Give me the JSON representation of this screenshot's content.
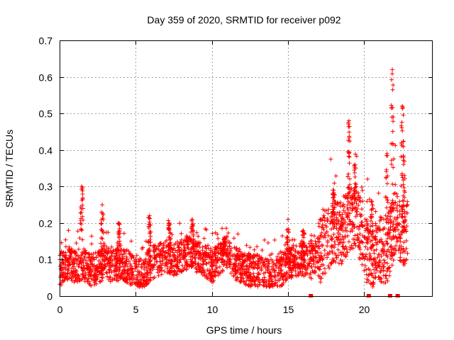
{
  "chart_data": {
    "type": "scatter",
    "title": "Day 359 of 2020, SRMTID for receiver p092",
    "xlabel": "GPS time / hours",
    "ylabel": "SRMTID / TECUs",
    "xlim": [
      0,
      24.5
    ],
    "ylim": [
      0,
      0.7
    ],
    "xticks": [
      0,
      5,
      10,
      15,
      20
    ],
    "xtick_labels": [
      "0",
      "5",
      "10",
      "15",
      "20"
    ],
    "yticks": [
      0,
      0.1,
      0.2,
      0.3,
      0.4,
      0.5,
      0.6,
      0.7
    ],
    "ytick_labels": [
      "0",
      "0.1",
      "0.2",
      "0.3",
      "0.4",
      "0.5",
      "0.6",
      "0.7"
    ],
    "grid": true,
    "marker": "+",
    "color": "#ff0000",
    "baseline_points": [
      [
        0.0,
        0.07
      ],
      [
        0.5,
        0.09
      ],
      [
        1.0,
        0.08
      ],
      [
        1.5,
        0.09
      ],
      [
        2.0,
        0.07
      ],
      [
        2.5,
        0.08
      ],
      [
        3.0,
        0.09
      ],
      [
        3.5,
        0.08
      ],
      [
        4.0,
        0.09
      ],
      [
        4.5,
        0.08
      ],
      [
        5.0,
        0.06
      ],
      [
        5.5,
        0.06
      ],
      [
        6.0,
        0.09
      ],
      [
        6.5,
        0.1
      ],
      [
        7.0,
        0.11
      ],
      [
        7.5,
        0.1
      ],
      [
        8.0,
        0.11
      ],
      [
        8.5,
        0.12
      ],
      [
        9.0,
        0.11
      ],
      [
        9.5,
        0.1
      ],
      [
        10.0,
        0.08
      ],
      [
        10.5,
        0.1
      ],
      [
        11.0,
        0.12
      ],
      [
        11.5,
        0.09
      ],
      [
        12.0,
        0.08
      ],
      [
        12.5,
        0.07
      ],
      [
        13.0,
        0.07
      ],
      [
        13.5,
        0.06
      ],
      [
        14.0,
        0.06
      ],
      [
        14.5,
        0.07
      ],
      [
        15.0,
        0.09
      ],
      [
        15.5,
        0.1
      ],
      [
        16.0,
        0.1
      ],
      [
        16.5,
        0.09
      ],
      [
        17.0,
        0.12
      ],
      [
        17.5,
        0.15
      ],
      [
        18.0,
        0.18
      ],
      [
        18.5,
        0.17
      ],
      [
        19.0,
        0.2
      ],
      [
        19.5,
        0.22
      ],
      [
        20.0,
        0.14
      ],
      [
        20.5,
        0.1
      ],
      [
        21.0,
        0.13
      ],
      [
        21.5,
        0.12
      ],
      [
        22.0,
        0.2
      ],
      [
        22.5,
        0.17
      ],
      [
        22.8,
        0.18
      ]
    ],
    "spikes": [
      {
        "x": 1.45,
        "peak": 0.3
      },
      {
        "x": 2.8,
        "peak": 0.25
      },
      {
        "x": 3.9,
        "peak": 0.2
      },
      {
        "x": 5.9,
        "peak": 0.22
      },
      {
        "x": 7.2,
        "peak": 0.2
      },
      {
        "x": 8.7,
        "peak": 0.21
      },
      {
        "x": 10.8,
        "peak": 0.16
      },
      {
        "x": 15.0,
        "peak": 0.21
      },
      {
        "x": 16.0,
        "peak": 0.18
      },
      {
        "x": 18.0,
        "peak": 0.29
      },
      {
        "x": 19.0,
        "peak": 0.48
      },
      {
        "x": 19.4,
        "peak": 0.36
      },
      {
        "x": 20.5,
        "peak": 0.26
      },
      {
        "x": 21.5,
        "peak": 0.39
      },
      {
        "x": 21.85,
        "peak": 0.62
      },
      {
        "x": 22.5,
        "peak": 0.52
      },
      {
        "x": 22.6,
        "peak": 0.38
      }
    ],
    "gap_markers_x": [
      16.5,
      20.3,
      21.7,
      22.2
    ]
  }
}
